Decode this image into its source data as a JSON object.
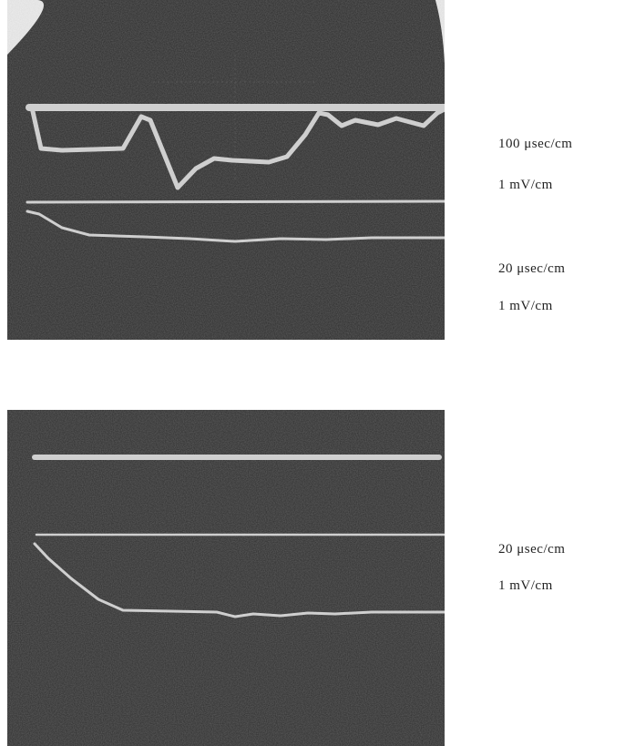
{
  "labels": [
    {
      "timebase": "100 μsec/cm",
      "sensitivity": "1 mV/cm"
    },
    {
      "timebase": "20 μsec/cm",
      "sensitivity": "1 mV/cm"
    },
    {
      "timebase": "20 μsec/cm",
      "sensitivity": "1 mV/cm"
    }
  ]
}
